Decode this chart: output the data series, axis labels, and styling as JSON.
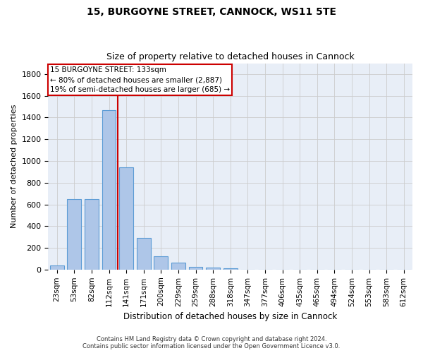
{
  "title": "15, BURGOYNE STREET, CANNOCK, WS11 5TE",
  "subtitle": "Size of property relative to detached houses in Cannock",
  "xlabel": "Distribution of detached houses by size in Cannock",
  "ylabel": "Number of detached properties",
  "categories": [
    "23sqm",
    "53sqm",
    "82sqm",
    "112sqm",
    "141sqm",
    "171sqm",
    "200sqm",
    "229sqm",
    "259sqm",
    "288sqm",
    "318sqm",
    "347sqm",
    "377sqm",
    "406sqm",
    "435sqm",
    "465sqm",
    "494sqm",
    "524sqm",
    "553sqm",
    "583sqm",
    "612sqm"
  ],
  "values": [
    35,
    650,
    650,
    1470,
    940,
    290,
    125,
    65,
    25,
    20,
    12,
    0,
    0,
    0,
    0,
    0,
    0,
    0,
    0,
    0,
    0
  ],
  "bar_color": "#aec6e8",
  "bar_edge_color": "#5b9bd5",
  "red_line_x": 3.5,
  "annotation_title": "15 BURGOYNE STREET: 133sqm",
  "annotation_line1": "← 80% of detached houses are smaller (2,887)",
  "annotation_line2": "19% of semi-detached houses are larger (685) →",
  "annotation_box_color": "#ffffff",
  "annotation_box_edge": "#cc0000",
  "red_line_color": "#cc0000",
  "ylim": [
    0,
    1900
  ],
  "yticks": [
    0,
    200,
    400,
    600,
    800,
    1000,
    1200,
    1400,
    1600,
    1800
  ],
  "grid_color": "#cccccc",
  "bg_color": "#e8eef7",
  "footer1": "Contains HM Land Registry data © Crown copyright and database right 2024.",
  "footer2": "Contains public sector information licensed under the Open Government Licence v3.0."
}
